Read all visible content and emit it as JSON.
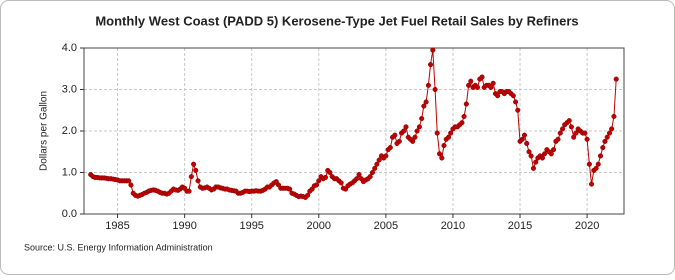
{
  "chart_data": {
    "type": "line",
    "title": "Monthly West Coast (PADD 5) Kerosene-Type Jet Fuel Retail Sales by Refiners",
    "y_label": "Dollars per Gallon",
    "source": "Source: U.S. Energy Information Administration",
    "xlim": [
      1982.5,
      2022.75
    ],
    "xticks": [
      1985,
      1990,
      1995,
      2000,
      2005,
      2010,
      2015,
      2020
    ],
    "ylim": [
      0,
      4
    ],
    "yticks": [
      {
        "value": 0,
        "label": "0.0"
      },
      {
        "value": 1,
        "label": "1.0"
      },
      {
        "value": 2,
        "label": "2.0"
      },
      {
        "value": 3,
        "label": "3.0"
      },
      {
        "value": 4,
        "label": "4.0"
      }
    ],
    "grid": true,
    "x": [
      1983,
      1983.17,
      1983.33,
      1983.5,
      1983.67,
      1983.83,
      1984,
      1984.17,
      1984.33,
      1984.5,
      1984.67,
      1984.83,
      1985,
      1985.17,
      1985.33,
      1985.5,
      1985.67,
      1985.83,
      1986,
      1986.17,
      1986.33,
      1986.5,
      1986.67,
      1986.83,
      1987,
      1987.17,
      1987.33,
      1987.5,
      1987.67,
      1987.83,
      1988,
      1988.17,
      1988.33,
      1988.5,
      1988.67,
      1988.83,
      1989,
      1989.17,
      1989.33,
      1989.5,
      1989.67,
      1989.83,
      1990,
      1990.17,
      1990.33,
      1990.5,
      1990.67,
      1990.83,
      1991,
      1991.17,
      1991.33,
      1991.5,
      1991.67,
      1991.83,
      1992,
      1992.17,
      1992.33,
      1992.5,
      1992.67,
      1992.83,
      1993,
      1993.17,
      1993.33,
      1993.5,
      1993.67,
      1993.83,
      1994,
      1994.17,
      1994.33,
      1994.5,
      1994.67,
      1994.83,
      1995,
      1995.17,
      1995.33,
      1995.5,
      1995.67,
      1995.83,
      1996,
      1996.17,
      1996.33,
      1996.5,
      1996.67,
      1996.83,
      1997,
      1997.17,
      1997.33,
      1997.5,
      1997.67,
      1997.83,
      1998,
      1998.17,
      1998.33,
      1998.5,
      1998.67,
      1998.83,
      1999,
      1999.17,
      1999.33,
      1999.5,
      1999.67,
      1999.83,
      2000,
      2000.17,
      2000.33,
      2000.5,
      2000.67,
      2000.83,
      2001,
      2001.17,
      2001.33,
      2001.5,
      2001.67,
      2001.83,
      2002,
      2002.17,
      2002.33,
      2002.5,
      2002.67,
      2002.83,
      2003,
      2003.17,
      2003.33,
      2003.5,
      2003.67,
      2003.83,
      2004,
      2004.17,
      2004.33,
      2004.5,
      2004.67,
      2004.83,
      2005,
      2005.17,
      2005.33,
      2005.5,
      2005.67,
      2005.83,
      2006,
      2006.17,
      2006.33,
      2006.5,
      2006.67,
      2006.83,
      2007,
      2007.17,
      2007.33,
      2007.5,
      2007.67,
      2007.83,
      2008,
      2008.17,
      2008.33,
      2008.5,
      2008.67,
      2008.83,
      2009,
      2009.17,
      2009.33,
      2009.5,
      2009.67,
      2009.83,
      2010,
      2010.17,
      2010.33,
      2010.5,
      2010.67,
      2010.83,
      2011,
      2011.17,
      2011.33,
      2011.5,
      2011.67,
      2011.83,
      2012,
      2012.17,
      2012.33,
      2012.5,
      2012.67,
      2012.83,
      2013,
      2013.17,
      2013.33,
      2013.5,
      2013.67,
      2013.83,
      2014,
      2014.17,
      2014.33,
      2014.5,
      2014.67,
      2014.83,
      2015,
      2015.17,
      2015.33,
      2015.5,
      2015.67,
      2015.83,
      2016,
      2016.17,
      2016.33,
      2016.5,
      2016.67,
      2016.83,
      2017,
      2017.17,
      2017.33,
      2017.5,
      2017.67,
      2017.83,
      2018,
      2018.17,
      2018.33,
      2018.5,
      2018.67,
      2018.83,
      2019,
      2019.17,
      2019.33,
      2019.5,
      2019.67,
      2019.83,
      2020,
      2020.17,
      2020.33,
      2020.5,
      2020.67,
      2020.83,
      2021,
      2021.17,
      2021.33,
      2021.5,
      2021.67,
      2021.83,
      2022,
      2022.17
    ],
    "series": [
      {
        "color": "#c00000",
        "values": [
          0.95,
          0.9,
          0.88,
          0.88,
          0.87,
          0.87,
          0.87,
          0.86,
          0.85,
          0.85,
          0.84,
          0.83,
          0.82,
          0.8,
          0.8,
          0.8,
          0.8,
          0.8,
          0.7,
          0.5,
          0.45,
          0.43,
          0.45,
          0.47,
          0.5,
          0.52,
          0.55,
          0.57,
          0.58,
          0.57,
          0.55,
          0.52,
          0.5,
          0.5,
          0.48,
          0.5,
          0.55,
          0.6,
          0.58,
          0.57,
          0.6,
          0.65,
          0.62,
          0.55,
          0.55,
          0.9,
          1.2,
          1.05,
          0.8,
          0.65,
          0.62,
          0.63,
          0.65,
          0.62,
          0.58,
          0.6,
          0.65,
          0.65,
          0.63,
          0.62,
          0.6,
          0.6,
          0.58,
          0.57,
          0.56,
          0.55,
          0.5,
          0.5,
          0.52,
          0.55,
          0.55,
          0.54,
          0.55,
          0.55,
          0.56,
          0.55,
          0.55,
          0.57,
          0.6,
          0.65,
          0.65,
          0.7,
          0.75,
          0.78,
          0.7,
          0.62,
          0.62,
          0.62,
          0.62,
          0.6,
          0.5,
          0.48,
          0.45,
          0.42,
          0.43,
          0.42,
          0.4,
          0.45,
          0.55,
          0.6,
          0.68,
          0.7,
          0.8,
          0.9,
          0.85,
          0.88,
          1.05,
          1.0,
          0.9,
          0.85,
          0.85,
          0.8,
          0.75,
          0.62,
          0.6,
          0.68,
          0.72,
          0.75,
          0.8,
          0.85,
          0.95,
          0.85,
          0.78,
          0.82,
          0.85,
          0.9,
          1.0,
          1.1,
          1.2,
          1.3,
          1.4,
          1.35,
          1.4,
          1.55,
          1.6,
          1.85,
          1.9,
          1.7,
          1.75,
          1.95,
          2.0,
          2.1,
          1.85,
          1.8,
          1.75,
          1.85,
          2.0,
          2.1,
          2.3,
          2.6,
          2.7,
          3.1,
          3.6,
          3.95,
          3.0,
          1.95,
          1.45,
          1.35,
          1.65,
          1.8,
          1.85,
          1.95,
          2.05,
          2.1,
          2.1,
          2.15,
          2.2,
          2.35,
          2.65,
          3.1,
          3.2,
          3.05,
          3.1,
          3.05,
          3.25,
          3.3,
          3.05,
          3.1,
          3.1,
          3.05,
          3.15,
          2.9,
          2.85,
          2.95,
          2.95,
          2.9,
          2.95,
          2.95,
          2.9,
          2.85,
          2.7,
          2.5,
          1.75,
          1.8,
          1.9,
          1.7,
          1.5,
          1.4,
          1.1,
          1.25,
          1.35,
          1.4,
          1.35,
          1.45,
          1.55,
          1.5,
          1.45,
          1.55,
          1.75,
          1.8,
          1.95,
          2.05,
          2.15,
          2.2,
          2.25,
          2.1,
          1.85,
          1.95,
          2.05,
          2.0,
          1.95,
          1.95,
          1.8,
          1.2,
          0.72,
          1.05,
          1.1,
          1.2,
          1.4,
          1.6,
          1.75,
          1.85,
          1.95,
          2.05,
          2.35,
          3.25
        ]
      }
    ]
  }
}
